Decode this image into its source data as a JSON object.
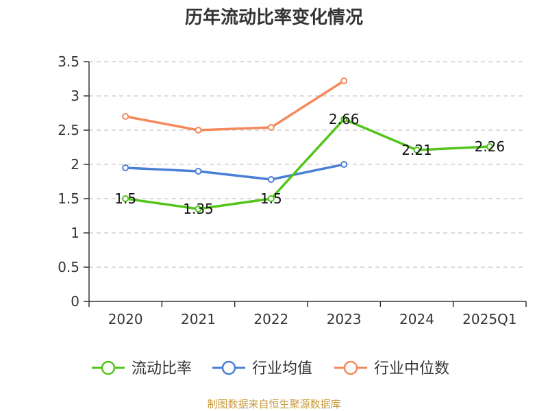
{
  "chart_data": {
    "type": "line",
    "title": "历年流动比率变化情况",
    "categories": [
      "2020",
      "2021",
      "2022",
      "2023",
      "2024",
      "2025Q1"
    ],
    "ylim": [
      0,
      3.5
    ],
    "yticks": [
      "0",
      "0.5",
      "1",
      "1.5",
      "2",
      "2.5",
      "3",
      "3.5"
    ],
    "grid": true,
    "legend_position": "bottom",
    "series": [
      {
        "name": "流动比率",
        "color": "#52c41a",
        "values": [
          1.5,
          1.35,
          1.5,
          2.66,
          2.21,
          2.26
        ],
        "labels": [
          "1.5",
          "1.35",
          "1.5",
          "2.66",
          "2.21",
          "2.26"
        ]
      },
      {
        "name": "行业均值",
        "color": "#4a7fd6",
        "values": [
          1.95,
          1.9,
          1.78,
          2.0,
          null,
          null
        ]
      },
      {
        "name": "行业中位数",
        "color": "#f5895a",
        "values": [
          2.7,
          2.5,
          2.54,
          3.22,
          null,
          null
        ]
      }
    ],
    "source": "制图数据来自恒生聚源数据库"
  }
}
